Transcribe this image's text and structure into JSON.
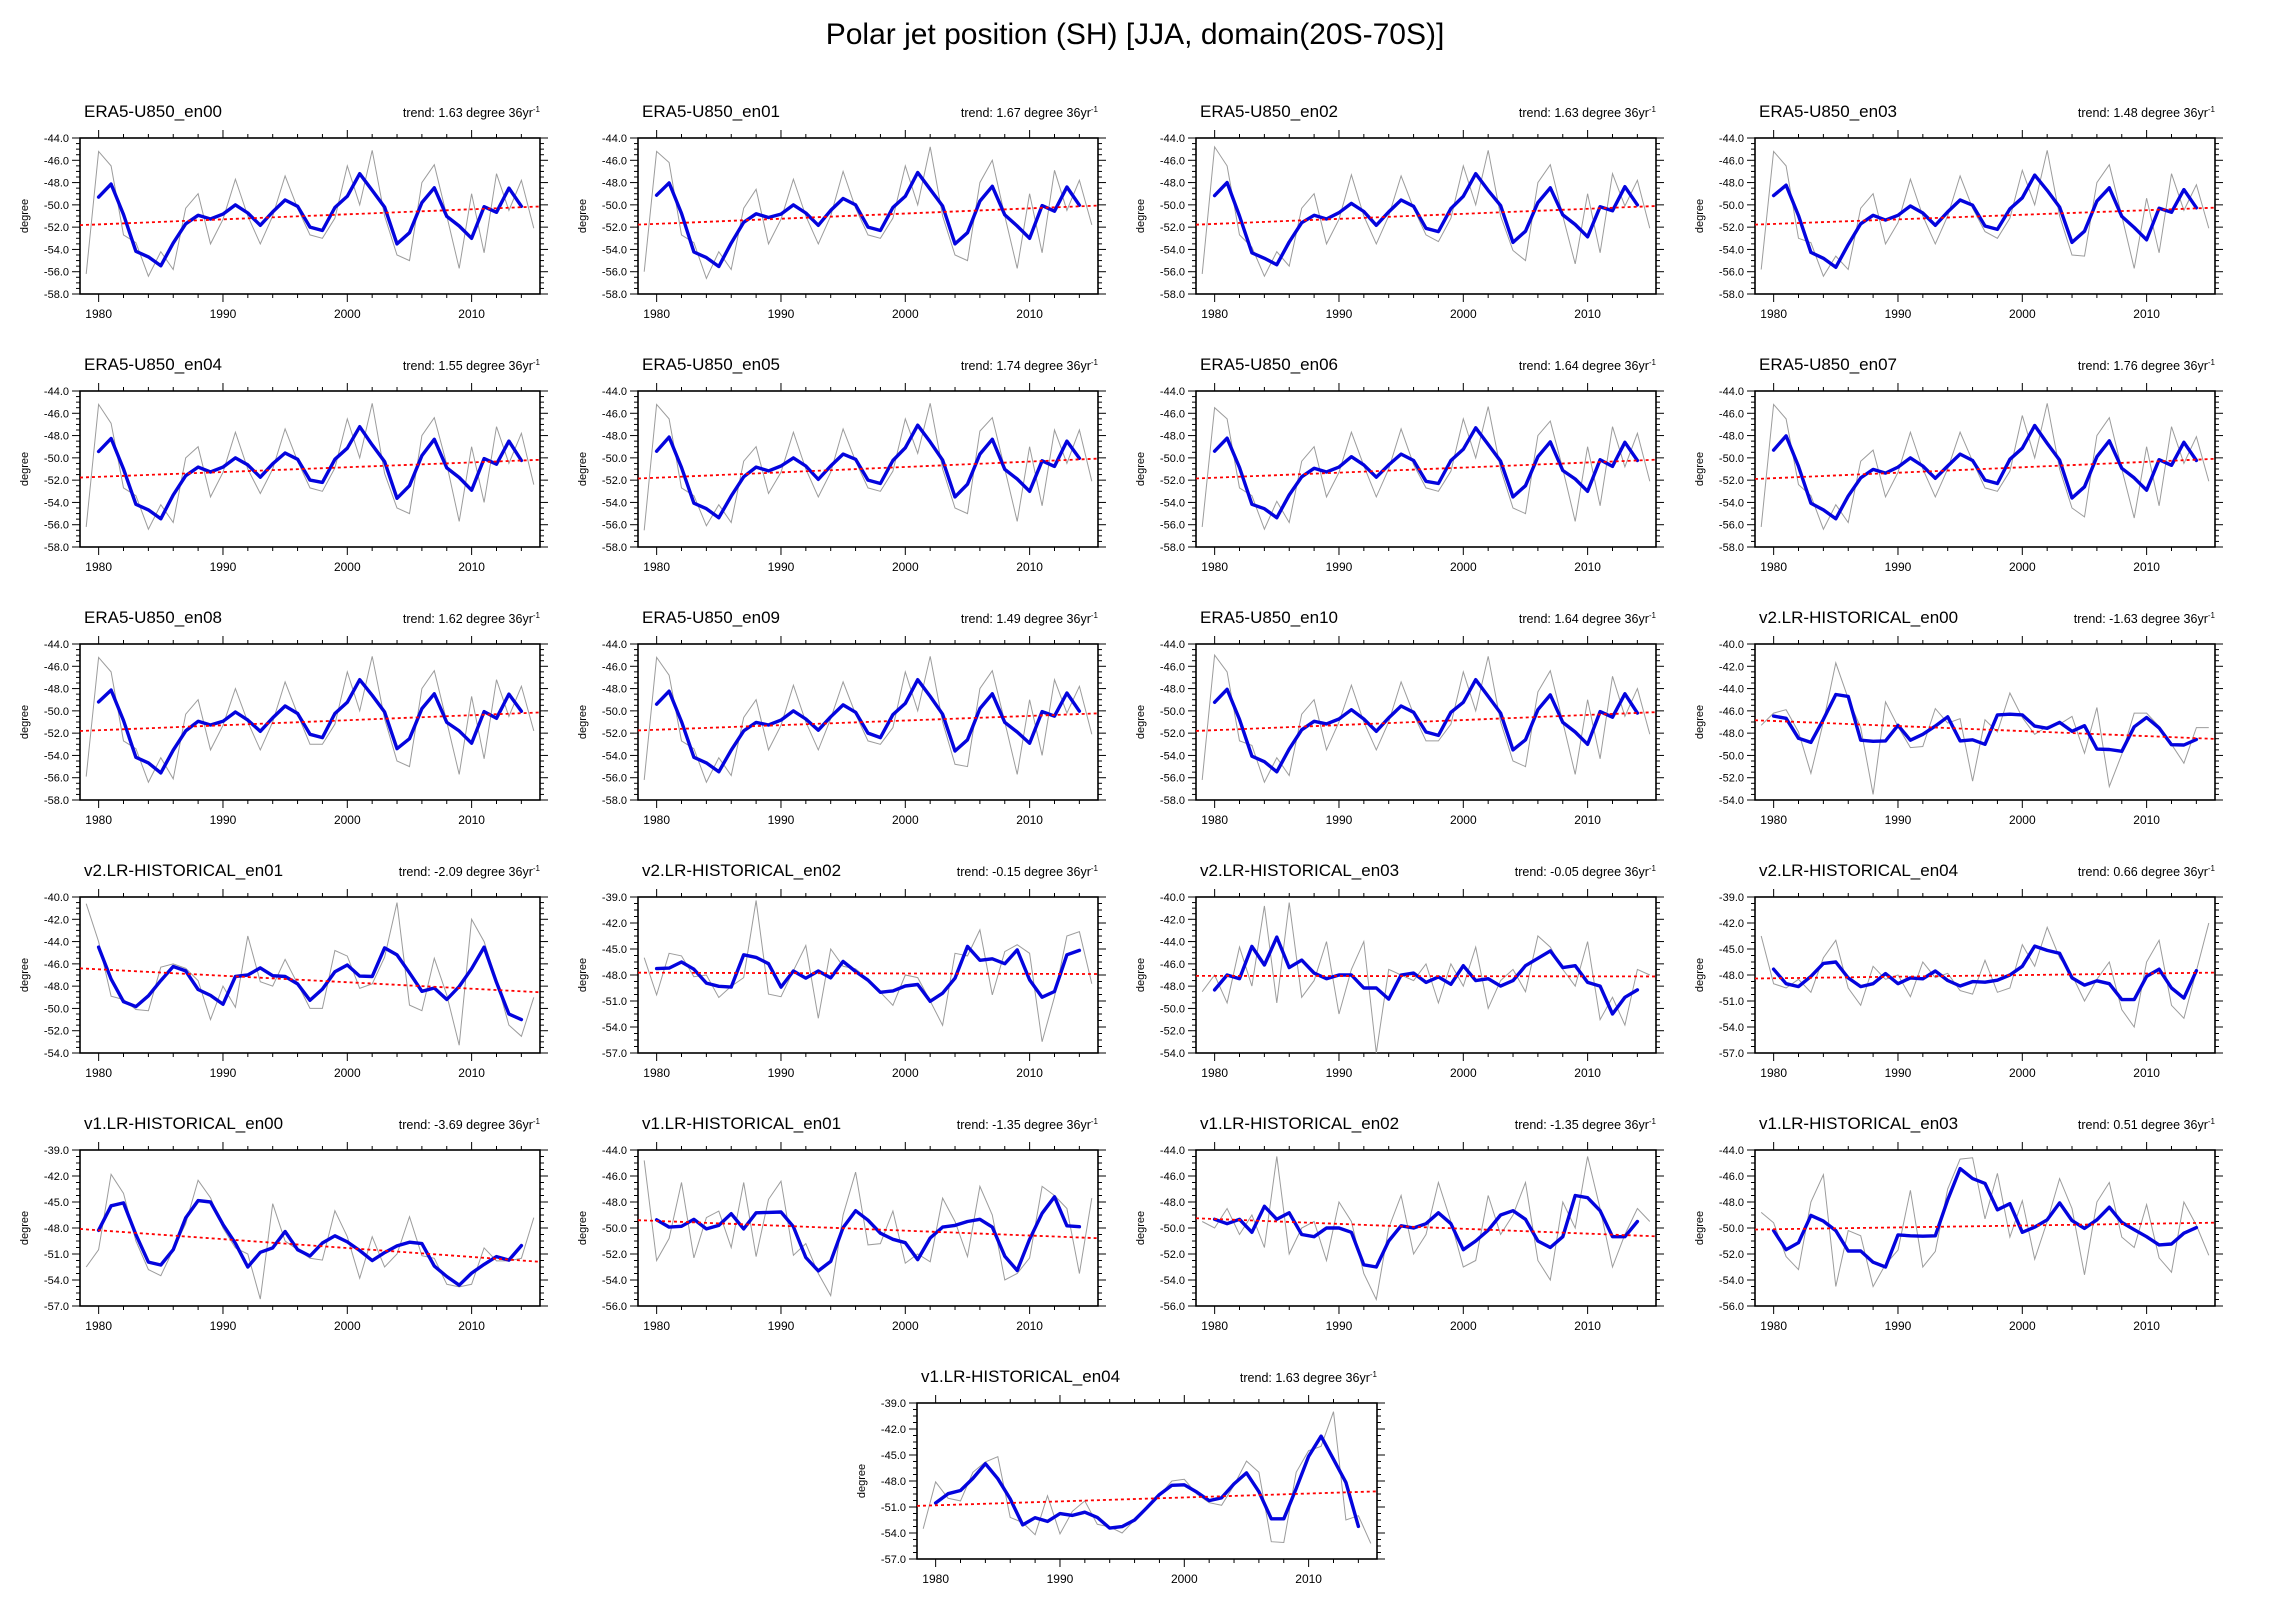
{
  "page_title": "Polar jet position (SH) [JJA, domain(20S-70S)]",
  "labels": {
    "trend_prefix": "trend: ",
    "trend_suffix": " degree 36yr",
    "trend_exponent": "-1",
    "ylabel": "degree"
  },
  "colors": {
    "annual_line": "#9c9c9c",
    "smoothed_line": "#0404dd",
    "trend_line": "#ff0000",
    "axis": "#000000"
  },
  "chart_data": {
    "type": "line",
    "x_start_year": 1979,
    "x_end_year": 2015,
    "x_ticks_major": [
      1980,
      1990,
      2000,
      2010
    ],
    "x_tick_minor_step": 2,
    "smooth_window": 3,
    "panels": [
      {
        "title": "ERA5-U850_en00",
        "trend": "1.63",
        "ymin": -58,
        "ymax": -44,
        "ystep": 2,
        "values": [
          -56.2,
          -45.2,
          -46.5,
          -52.7,
          -53.4,
          -56.4,
          -54.2,
          -55.8,
          -50.3,
          -49.0,
          -53.5,
          -51.3,
          -47.7,
          -51.0,
          -53.5,
          -51.0,
          -47.4,
          -50.3,
          -52.7,
          -53.0,
          -51.2,
          -46.5,
          -50.0,
          -45.1,
          -51.0,
          -54.5,
          -55.0,
          -48.0,
          -46.4,
          -51.0,
          -55.7,
          -49.0,
          -54.3,
          -47.2,
          -50.5,
          -47.8,
          -52.1
        ]
      },
      {
        "title": "ERA5-U850_en01",
        "trend": "1.67",
        "ymin": -58,
        "ymax": -44,
        "ystep": 2,
        "values": [
          -56.0,
          -45.2,
          -46.2,
          -52.7,
          -53.4,
          -56.6,
          -54.2,
          -55.8,
          -50.3,
          -48.6,
          -53.5,
          -51.3,
          -47.7,
          -51.0,
          -53.5,
          -51.0,
          -47.0,
          -50.3,
          -52.7,
          -53.0,
          -51.2,
          -46.5,
          -50.0,
          -44.8,
          -51.0,
          -54.5,
          -55.0,
          -48.0,
          -46.0,
          -51.0,
          -55.7,
          -49.0,
          -54.3,
          -46.9,
          -50.5,
          -47.8,
          -51.8
        ]
      },
      {
        "title": "ERA5-U850_en02",
        "trend": "1.63",
        "ymin": -58,
        "ymax": -44,
        "ystep": 2,
        "values": [
          -56.2,
          -44.8,
          -46.5,
          -52.7,
          -53.8,
          -56.4,
          -54.2,
          -55.5,
          -50.3,
          -49.0,
          -53.5,
          -51.3,
          -47.3,
          -51.0,
          -53.5,
          -51.0,
          -47.4,
          -50.3,
          -52.7,
          -53.3,
          -51.2,
          -46.5,
          -50.0,
          -45.1,
          -51.0,
          -54.1,
          -55.0,
          -48.0,
          -46.4,
          -51.0,
          -55.3,
          -49.0,
          -54.3,
          -47.2,
          -50.1,
          -47.8,
          -52.1
        ]
      },
      {
        "title": "ERA5-U850_en03",
        "trend": "1.48",
        "ymin": -58,
        "ymax": -44,
        "ystep": 2,
        "values": [
          -55.8,
          -45.2,
          -46.5,
          -53.0,
          -53.4,
          -56.4,
          -54.6,
          -55.8,
          -50.3,
          -49.0,
          -53.5,
          -51.6,
          -47.7,
          -51.0,
          -53.5,
          -51.0,
          -47.4,
          -50.3,
          -52.4,
          -53.0,
          -51.2,
          -46.9,
          -50.0,
          -45.1,
          -51.0,
          -54.5,
          -54.6,
          -48.0,
          -46.4,
          -51.0,
          -55.7,
          -49.4,
          -54.3,
          -47.2,
          -50.5,
          -48.2,
          -52.1
        ]
      },
      {
        "title": "ERA5-U850_en04",
        "trend": "1.55",
        "ymin": -58,
        "ymax": -44,
        "ystep": 2,
        "values": [
          -56.2,
          -45.2,
          -46.9,
          -52.7,
          -53.4,
          -56.4,
          -54.2,
          -55.8,
          -50.0,
          -49.0,
          -53.5,
          -51.3,
          -47.7,
          -51.0,
          -53.2,
          -51.0,
          -47.4,
          -50.3,
          -52.7,
          -53.0,
          -50.9,
          -46.5,
          -50.0,
          -45.1,
          -51.4,
          -54.5,
          -55.0,
          -48.0,
          -46.4,
          -50.6,
          -55.7,
          -49.0,
          -54.0,
          -47.2,
          -50.5,
          -47.8,
          -52.4
        ]
      },
      {
        "title": "ERA5-U850_en05",
        "trend": "1.74",
        "ymin": -58,
        "ymax": -44,
        "ystep": 2,
        "values": [
          -56.5,
          -45.2,
          -46.5,
          -52.7,
          -53.4,
          -56.1,
          -54.2,
          -55.8,
          -50.3,
          -49.0,
          -53.2,
          -51.3,
          -47.7,
          -51.0,
          -53.5,
          -51.3,
          -47.4,
          -50.3,
          -52.7,
          -53.0,
          -51.2,
          -46.5,
          -49.6,
          -45.1,
          -51.0,
          -54.5,
          -55.0,
          -47.6,
          -46.4,
          -51.0,
          -55.7,
          -49.0,
          -54.3,
          -47.5,
          -50.5,
          -47.5,
          -52.1
        ]
      },
      {
        "title": "ERA5-U850_en06",
        "trend": "1.64",
        "ymin": -58,
        "ymax": -44,
        "ystep": 2,
        "values": [
          -56.2,
          -45.5,
          -46.5,
          -52.7,
          -53.4,
          -56.4,
          -53.9,
          -55.8,
          -50.3,
          -49.0,
          -53.5,
          -51.3,
          -47.7,
          -50.7,
          -53.5,
          -51.0,
          -47.4,
          -50.6,
          -52.7,
          -53.0,
          -51.2,
          -46.5,
          -50.0,
          -45.4,
          -51.0,
          -54.5,
          -55.0,
          -48.0,
          -46.7,
          -51.0,
          -55.7,
          -49.0,
          -54.3,
          -47.2,
          -50.8,
          -47.8,
          -52.1
        ]
      },
      {
        "title": "ERA5-U850_en07",
        "trend": "1.76",
        "ymin": -58,
        "ymax": -44,
        "ystep": 2,
        "values": [
          -56.2,
          -45.2,
          -46.5,
          -52.4,
          -53.4,
          -56.4,
          -54.2,
          -55.8,
          -50.3,
          -49.3,
          -53.5,
          -51.3,
          -47.7,
          -51.0,
          -53.5,
          -51.0,
          -47.7,
          -50.3,
          -52.7,
          -53.0,
          -51.2,
          -46.2,
          -50.0,
          -45.1,
          -51.0,
          -54.5,
          -55.3,
          -48.0,
          -46.4,
          -51.0,
          -55.4,
          -49.0,
          -54.3,
          -47.2,
          -50.5,
          -48.1,
          -52.1
        ]
      },
      {
        "title": "ERA5-U850_en08",
        "trend": "1.62",
        "ymin": -58,
        "ymax": -44,
        "ystep": 2,
        "values": [
          -55.9,
          -45.2,
          -46.5,
          -52.7,
          -53.4,
          -56.4,
          -54.2,
          -56.1,
          -50.3,
          -49.0,
          -53.5,
          -51.3,
          -48.0,
          -51.0,
          -53.5,
          -51.0,
          -47.4,
          -50.3,
          -53.0,
          -53.0,
          -51.2,
          -46.5,
          -50.0,
          -45.1,
          -50.7,
          -54.5,
          -55.0,
          -48.0,
          -46.4,
          -51.0,
          -55.7,
          -48.7,
          -54.3,
          -47.2,
          -50.5,
          -47.8,
          -51.8
        ]
      },
      {
        "title": "ERA5-U850_en09",
        "trend": "1.49",
        "ymin": -58,
        "ymax": -44,
        "ystep": 2,
        "values": [
          -56.2,
          -45.2,
          -46.8,
          -52.7,
          -53.4,
          -56.4,
          -54.2,
          -55.8,
          -50.6,
          -49.0,
          -53.5,
          -51.3,
          -47.7,
          -51.0,
          -53.5,
          -50.7,
          -47.4,
          -50.3,
          -52.7,
          -53.0,
          -51.5,
          -46.5,
          -50.0,
          -45.1,
          -51.0,
          -54.8,
          -55.0,
          -48.0,
          -46.4,
          -51.0,
          -55.7,
          -49.0,
          -54.0,
          -47.2,
          -50.2,
          -47.8,
          -52.1
        ]
      },
      {
        "title": "ERA5-U850_en10",
        "trend": "1.64",
        "ymin": -58,
        "ymax": -44,
        "ystep": 2,
        "values": [
          -56.2,
          -45.0,
          -46.5,
          -52.7,
          -53.1,
          -56.4,
          -54.2,
          -55.8,
          -50.3,
          -49.0,
          -53.5,
          -51.0,
          -47.7,
          -51.0,
          -53.5,
          -51.0,
          -47.4,
          -50.3,
          -52.7,
          -52.7,
          -51.2,
          -46.5,
          -50.0,
          -45.1,
          -51.0,
          -54.5,
          -55.0,
          -48.3,
          -46.4,
          -51.0,
          -55.7,
          -49.0,
          -54.3,
          -46.9,
          -50.5,
          -48.0,
          -52.1
        ]
      },
      {
        "title": "v2.LR-HISTORICAL_en00",
        "trend": "-1.63",
        "ymin": -54,
        "ymax": -40,
        "ystep": 2,
        "values": [
          -47.3,
          -46.2,
          -45.9,
          -47.9,
          -51.6,
          -47.0,
          -41.7,
          -44.9,
          -47.5,
          -53.5,
          -45.2,
          -47.4,
          -49.3,
          -49.2,
          -45.8,
          -47.1,
          -46.7,
          -52.3,
          -46.8,
          -47.9,
          -44.4,
          -46.6,
          -48.1,
          -47.4,
          -47.2,
          -46.5,
          -49.8,
          -45.7,
          -52.8,
          -49.9,
          -46.2,
          -46.2,
          -47.4,
          -49.0,
          -50.7,
          -47.5,
          -47.5
        ]
      },
      {
        "title": "v2.LR-HISTORICAL_en01",
        "trend": "-2.09",
        "ymin": -54,
        "ymax": -40,
        "ystep": 2,
        "values": [
          -40.6,
          -44.0,
          -48.9,
          -49.2,
          -50.1,
          -50.2,
          -46.3,
          -46.0,
          -46.4,
          -47.5,
          -51.0,
          -48.0,
          -49.9,
          -43.5,
          -47.6,
          -48.0,
          -45.6,
          -47.8,
          -50.0,
          -50.0,
          -44.8,
          -45.3,
          -48.2,
          -47.8,
          -45.4,
          -40.5,
          -49.7,
          -50.2,
          -45.5,
          -48.8,
          -53.3,
          -42.0,
          -44.0,
          -47.5,
          -51.5,
          -52.5,
          -49.0
        ]
      },
      {
        "title": "v2.LR-HISTORICAL_en02",
        "trend": "-0.15",
        "ymin": -57,
        "ymax": -39,
        "ystep": 3,
        "values": [
          -46.0,
          -50.3,
          -45.5,
          -45.8,
          -48.2,
          -48.0,
          -50.6,
          -49.3,
          -48.3,
          -39.4,
          -50.2,
          -50.5,
          -47.5,
          -44.6,
          -53.0,
          -45.0,
          -47.0,
          -47.3,
          -48.5,
          -50.0,
          -51.5,
          -48.0,
          -48.3,
          -51.0,
          -53.8,
          -45.5,
          -45.8,
          -42.8,
          -50.3,
          -45.3,
          -44.5,
          -45.5,
          -55.7,
          -50.5,
          -43.5,
          -43.0,
          -49.0
        ]
      },
      {
        "title": "v2.LR-HISTORICAL_en03",
        "trend": "-0.05",
        "ymin": -54,
        "ymax": -40,
        "ystep": 2,
        "values": [
          -48.5,
          -47.0,
          -49.5,
          -44.5,
          -48.0,
          -40.8,
          -49.5,
          -40.5,
          -49.0,
          -47.5,
          -44.0,
          -50.5,
          -46.5,
          -44.0,
          -54.0,
          -46.5,
          -47.0,
          -47.5,
          -46.0,
          -49.5,
          -46.0,
          -48.0,
          -44.5,
          -50.0,
          -47.5,
          -46.5,
          -48.5,
          -43.5,
          -44.5,
          -46.5,
          -48.0,
          -44.0,
          -51.0,
          -49.0,
          -51.5,
          -46.5,
          -47.0
        ]
      },
      {
        "title": "v2.LR-HISTORICAL_en04",
        "trend": "0.66",
        "ymin": -57,
        "ymax": -39,
        "ystep": 3,
        "values": [
          -43.5,
          -49.0,
          -49.5,
          -48.5,
          -50.0,
          -46.0,
          -44.0,
          -49.5,
          -51.5,
          -47.0,
          -48.5,
          -48.0,
          -50.5,
          -46.5,
          -48.3,
          -47.8,
          -49.8,
          -50.2,
          -46.3,
          -50.0,
          -49.5,
          -44.5,
          -47.0,
          -42.5,
          -46.0,
          -48.0,
          -51.0,
          -48.5,
          -46.5,
          -52.0,
          -54.0,
          -46.5,
          -44.0,
          -51.5,
          -53.0,
          -47.5,
          -42.0
        ]
      },
      {
        "title": "v1.LR-HISTORICAL_en00",
        "trend": "-3.69",
        "ymin": -57,
        "ymax": -39,
        "ystep": 3,
        "values": [
          -52.5,
          -50.5,
          -41.8,
          -44.0,
          -49.5,
          -52.8,
          -53.5,
          -50.5,
          -47.5,
          -42.5,
          -44.5,
          -48.0,
          -50.3,
          -51.0,
          -56.2,
          -45.2,
          -49.5,
          -50.5,
          -51.5,
          -51.7,
          -46.0,
          -49.0,
          -53.8,
          -49.0,
          -52.5,
          -51.0,
          -46.7,
          -51.2,
          -51.5,
          -54.5,
          -54.8,
          -54.5,
          -50.3,
          -51.8,
          -51.8,
          -51.5,
          -46.8
        ]
      },
      {
        "title": "v1.LR-HISTORICAL_en01",
        "trend": "-1.35",
        "ymin": -56,
        "ymax": -44,
        "ystep": 2,
        "values": [
          -44.8,
          -52.5,
          -50.8,
          -46.5,
          -52.3,
          -49.2,
          -48.7,
          -51.5,
          -46.5,
          -52.2,
          -47.8,
          -46.4,
          -52.1,
          -51.2,
          -53.5,
          -55.2,
          -49.0,
          -45.7,
          -51.3,
          -51.2,
          -48.7,
          -52.7,
          -52.0,
          -52.6,
          -47.7,
          -49.5,
          -52.2,
          -46.8,
          -49.0,
          -54.0,
          -53.5,
          -52.3,
          -46.8,
          -47.5,
          -48.5,
          -53.5,
          -47.7
        ]
      },
      {
        "title": "v1.LR-HISTORICAL_en02",
        "trend": "-1.35",
        "ymin": -56,
        "ymax": -44,
        "ystep": 2,
        "values": [
          -49.5,
          -50.0,
          -48.5,
          -50.5,
          -49.0,
          -51.5,
          -44.5,
          -52.0,
          -50.0,
          -49.5,
          -52.5,
          -48.0,
          -49.5,
          -53.5,
          -55.5,
          -50.0,
          -47.5,
          -52.0,
          -50.5,
          -46.5,
          -49.5,
          -53.0,
          -52.5,
          -47.5,
          -50.5,
          -49.0,
          -46.5,
          -52.5,
          -54.0,
          -48.0,
          -50.0,
          -44.5,
          -48.5,
          -53.0,
          -50.5,
          -48.5,
          -49.5
        ]
      },
      {
        "title": "v1.LR-HISTORICAL_en03",
        "trend": "0.51",
        "ymin": -56,
        "ymax": -44,
        "ystep": 2,
        "values": [
          -48.8,
          -49.6,
          -52.2,
          -53.2,
          -48.0,
          -45.9,
          -54.5,
          -50.2,
          -50.6,
          -54.5,
          -52.8,
          -51.7,
          -47.1,
          -53.0,
          -51.8,
          -47.0,
          -44.7,
          -44.6,
          -49.3,
          -45.8,
          -50.7,
          -47.9,
          -52.4,
          -49.5,
          -46.2,
          -48.5,
          -53.6,
          -48.0,
          -46.5,
          -50.7,
          -51.5,
          -48.2,
          -52.3,
          -53.4,
          -48.0,
          -49.8,
          -52.1
        ]
      },
      {
        "title": "v1.LR-HISTORICAL_en04",
        "trend": "1.63",
        "ymin": -57,
        "ymax": -39,
        "ystep": 3,
        "values": [
          -53.5,
          -48.1,
          -50.0,
          -50.3,
          -47.0,
          -45.8,
          -45.2,
          -52.2,
          -52.8,
          -54.2,
          -49.7,
          -54.1,
          -51.5,
          -50.3,
          -53.0,
          -53.3,
          -54.0,
          -52.5,
          -51.0,
          -49.7,
          -48.0,
          -47.8,
          -49.5,
          -50.5,
          -50.8,
          -48.5,
          -45.7,
          -47.0,
          -55.0,
          -55.1,
          -47.0,
          -44.5,
          -44.0,
          -40.0,
          -52.5,
          -52.0,
          -55.2
        ]
      }
    ]
  }
}
